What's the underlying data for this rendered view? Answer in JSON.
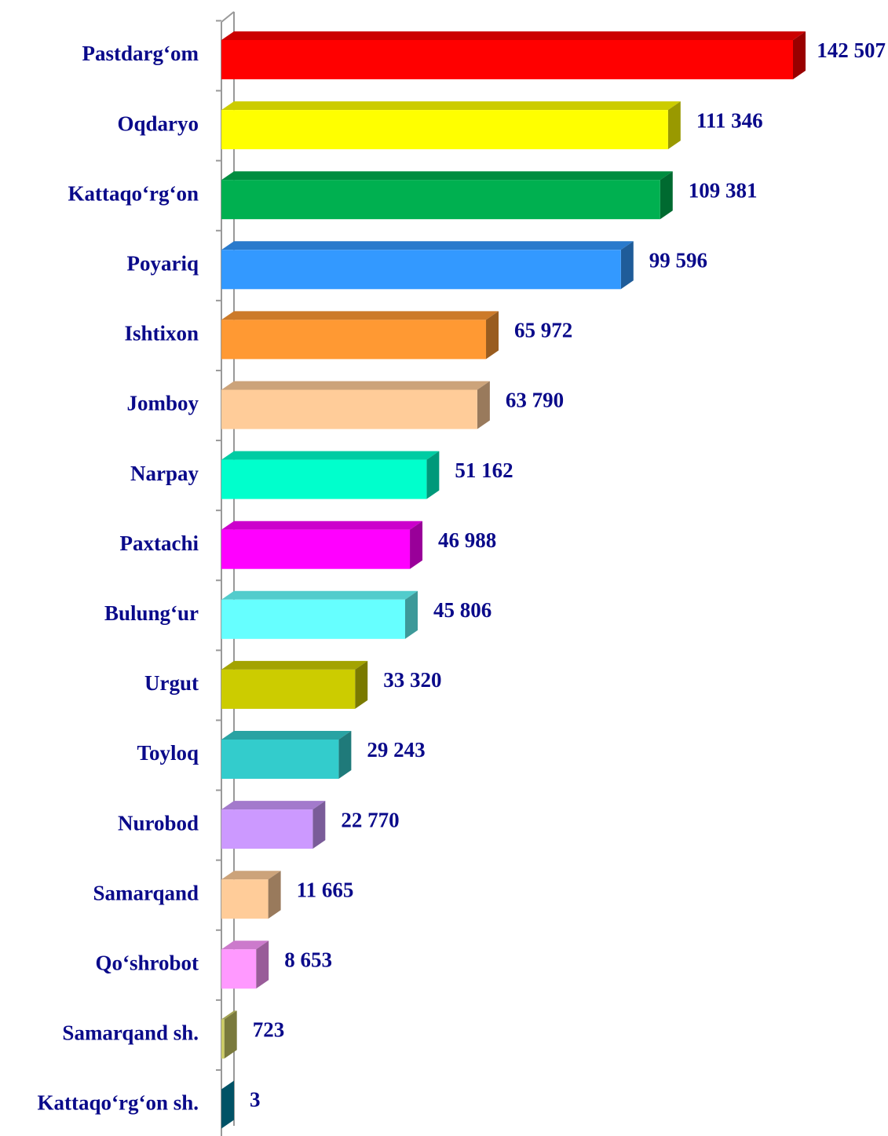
{
  "chart_data": {
    "type": "bar3d_horizontal",
    "categories": [
      "Pastdarg‘om",
      "Oqdaryo",
      "Kattaqo‘rg‘on ",
      "Poyariq",
      "Ishtixon",
      "Jomboy",
      "Narpay",
      "Paxtachi",
      "Bulung‘ur",
      "Urgut",
      "Toyloq",
      "Nurobod",
      "Samarqand",
      "Qo‘shrobot",
      "Samarqand sh.",
      "Kattaqo‘rg‘on sh."
    ],
    "values": [
      142507,
      111346,
      109381,
      99596,
      65972,
      63790,
      51162,
      46988,
      45806,
      33320,
      29243,
      22770,
      11665,
      8653,
      723,
      3
    ],
    "value_labels": [
      "142 507",
      "111 346",
      "109 381",
      "99 596",
      "65 972",
      "63 790",
      "51 162",
      "46 988",
      "45 806",
      "33 320",
      "29 243",
      "22 770",
      "11 665",
      "8 653",
      "723",
      "3"
    ],
    "colors": [
      "#ff0000",
      "#ffff00",
      "#00b050",
      "#3399ff",
      "#ff9933",
      "#ffcc99",
      "#00ffcc",
      "#ff00ff",
      "#66ffff",
      "#cccc00",
      "#33cccc",
      "#cc99ff",
      "#ffcc99",
      "#ff99ff",
      "#cccc66",
      "#0088aa"
    ]
  }
}
